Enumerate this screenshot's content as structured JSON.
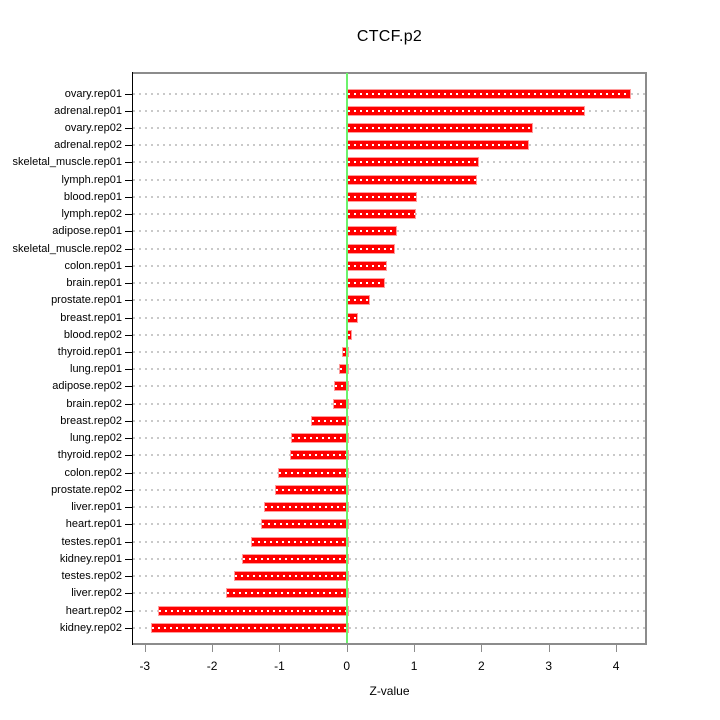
{
  "chart_data": {
    "type": "bar",
    "orientation": "horizontal",
    "title": "CTCF.p2",
    "xlabel": "Z-value",
    "ylabel": "",
    "xlim": [
      -3.19,
      4.46
    ],
    "xticks": [
      -3,
      -2,
      -1,
      0,
      1,
      2,
      3,
      4
    ],
    "zero_reference_line": 0,
    "grid": "dotted-horizontal-per-category",
    "legend": null,
    "categories": [
      "ovary.rep01",
      "adrenal.rep01",
      "ovary.rep02",
      "adrenal.rep02",
      "skeletal_muscle.rep01",
      "lymph.rep01",
      "blood.rep01",
      "lymph.rep02",
      "adipose.rep01",
      "skeletal_muscle.rep02",
      "colon.rep01",
      "brain.rep01",
      "prostate.rep01",
      "breast.rep01",
      "blood.rep02",
      "thyroid.rep01",
      "lung.rep01",
      "adipose.rep02",
      "brain.rep02",
      "breast.rep02",
      "lung.rep02",
      "thyroid.rep02",
      "colon.rep02",
      "prostate.rep02",
      "liver.rep01",
      "heart.rep01",
      "testes.rep01",
      "kidney.rep01",
      "testes.rep02",
      "liver.rep02",
      "heart.rep02",
      "kidney.rep02"
    ],
    "values": [
      4.19,
      3.51,
      2.74,
      2.68,
      1.93,
      1.9,
      1.02,
      1.0,
      0.71,
      0.69,
      0.57,
      0.54,
      0.31,
      0.14,
      0.05,
      -0.07,
      -0.12,
      -0.19,
      -0.21,
      -0.53,
      -0.83,
      -0.85,
      -1.02,
      -1.07,
      -1.23,
      -1.27,
      -1.42,
      -1.56,
      -1.67,
      -1.79,
      -2.81,
      -2.91
    ]
  },
  "colors": {
    "bar_fill": "#FF0000",
    "bar_border": "#FF9C9C",
    "bar_inner_dots": "#FFFFFF",
    "zero_line": "#6CF26C",
    "gridline": "#C9C9C9",
    "box_border": "#8C8C8C",
    "axis": "#000000",
    "text": "#000000",
    "background": "#FFFFFF"
  }
}
